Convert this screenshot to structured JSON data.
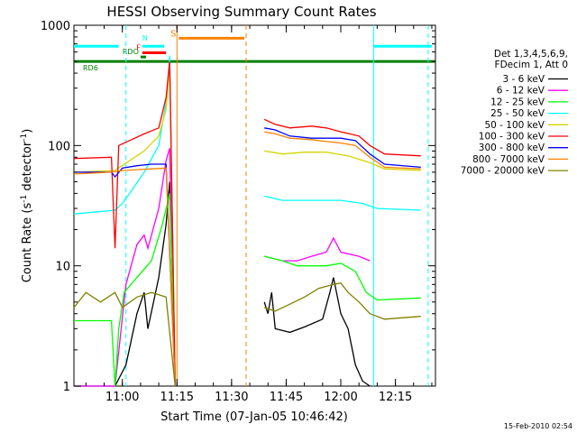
{
  "chart_data": {
    "type": "line",
    "title": "HESSI Observing Summary Count Rates",
    "xlabel": "Start Time (07-Jan-05 10:46:42)",
    "ylabel_main": "Count Rate (s",
    "ylabel_sup1": "-1",
    "ylabel_mid": " detector",
    "ylabel_sup2": "-1",
    "ylabel_end": ")",
    "footer": "15-Feb-2010 02:54",
    "y_scale": "log",
    "xlim": [
      "10:46:42",
      "12:26:00"
    ],
    "ylim": [
      1,
      1000
    ],
    "x_ticks": [
      {
        "time": "11:00",
        "label": "11:00"
      },
      {
        "time": "11:15",
        "label": "11:15"
      },
      {
        "time": "11:30",
        "label": "11:30"
      },
      {
        "time": "11:45",
        "label": "11:45"
      },
      {
        "time": "12:00",
        "label": "12:00"
      },
      {
        "time": "12:15",
        "label": "12:15"
      }
    ],
    "y_ticks": [
      {
        "value": 1,
        "label": "1"
      },
      {
        "value": 10,
        "label": "10"
      },
      {
        "value": 100,
        "label": "100"
      },
      {
        "value": 1000,
        "label": "1000"
      }
    ],
    "legend_header": [
      "Det 1,3,4,5,6,9,",
      "FDecim 1, Att 0"
    ],
    "series": [
      {
        "name": "3 - 6 keV",
        "color": "#000000",
        "points": [
          [
            "10:46:42",
            1
          ],
          [
            "10:58:00",
            1
          ],
          [
            "11:01:00",
            1.5
          ],
          [
            "11:04:00",
            4
          ],
          [
            "11:06:00",
            6
          ],
          [
            "11:07:00",
            3
          ],
          [
            "11:10:00",
            8
          ],
          [
            "11:12:00",
            22
          ],
          [
            "11:13:00",
            50
          ],
          [
            "11:14:30",
            1
          ],
          [
            "11:38:00",
            null
          ],
          [
            "11:39:00",
            5
          ],
          [
            "11:40:00",
            4
          ],
          [
            "11:41:00",
            6
          ],
          [
            "11:42:00",
            3
          ],
          [
            "11:46:00",
            2.8
          ],
          [
            "11:50:00",
            3.1
          ],
          [
            "11:55:00",
            3.6
          ],
          [
            "11:57:00",
            6
          ],
          [
            "11:58:00",
            8
          ],
          [
            "12:00:00",
            4
          ],
          [
            "12:02:00",
            3
          ],
          [
            "12:04:00",
            1.5
          ],
          [
            "12:06:00",
            1.1
          ],
          [
            "12:08:00",
            1
          ],
          [
            "12:10:00",
            null
          ]
        ]
      },
      {
        "name": "6 - 12 keV",
        "color": "#ff00ff",
        "points": [
          [
            "10:46:42",
            1
          ],
          [
            "10:58:00",
            1
          ],
          [
            "11:01:00",
            7
          ],
          [
            "11:04:00",
            15
          ],
          [
            "11:06:00",
            18
          ],
          [
            "11:07:00",
            14
          ],
          [
            "11:10:00",
            30
          ],
          [
            "11:12:00",
            75
          ],
          [
            "11:13:00",
            95
          ],
          [
            "11:14:30",
            1
          ],
          [
            "11:38:00",
            null
          ],
          [
            "11:39:00",
            12
          ],
          [
            "11:44:00",
            11
          ],
          [
            "11:48:00",
            11
          ],
          [
            "11:52:00",
            12
          ],
          [
            "11:56:00",
            13
          ],
          [
            "11:58:00",
            17
          ],
          [
            "12:00:00",
            13
          ],
          [
            "12:05:00",
            12
          ],
          [
            "12:08:00",
            11
          ],
          [
            "12:10:00",
            null
          ]
        ]
      },
      {
        "name": "12 - 25 keV",
        "color": "#00ff00",
        "points": [
          [
            "10:46:42",
            3.5
          ],
          [
            "10:57:00",
            3.5
          ],
          [
            "10:58:00",
            1
          ],
          [
            "10:59:00",
            3
          ],
          [
            "11:00:30",
            6
          ],
          [
            "11:04:00",
            8
          ],
          [
            "11:08:00",
            11
          ],
          [
            "11:11:00",
            22
          ],
          [
            "11:13:00",
            40
          ],
          [
            "11:14:30",
            1
          ],
          [
            "11:38:00",
            null
          ],
          [
            "11:39:00",
            12
          ],
          [
            "11:44:00",
            11
          ],
          [
            "11:48:00",
            10
          ],
          [
            "11:52:00",
            10
          ],
          [
            "11:56:00",
            10
          ],
          [
            "12:00:00",
            10.5
          ],
          [
            "12:04:00",
            9
          ],
          [
            "12:07:00",
            6
          ],
          [
            "12:10:00",
            5.2
          ],
          [
            "12:22:00",
            5.4
          ]
        ]
      },
      {
        "name": "25 - 50 keV",
        "color": "#00ffff",
        "points": [
          [
            "10:46:42",
            27
          ],
          [
            "10:58:00",
            29
          ],
          [
            "11:00:00",
            33
          ],
          [
            "11:02:00",
            40
          ],
          [
            "11:06:00",
            60
          ],
          [
            "11:10:00",
            100
          ],
          [
            "11:12:00",
            230
          ],
          [
            "11:13:00",
            560
          ],
          [
            "11:14:30",
            1
          ],
          [
            "11:38:00",
            null
          ],
          [
            "11:39:00",
            38
          ],
          [
            "11:44:00",
            35
          ],
          [
            "11:50:00",
            35
          ],
          [
            "11:56:00",
            35
          ],
          [
            "12:00:00",
            35
          ],
          [
            "12:06:00",
            33
          ],
          [
            "12:10:00",
            30
          ],
          [
            "12:22:00",
            29
          ]
        ]
      },
      {
        "name": "50 - 100 keV",
        "color": "#d4d400",
        "points": [
          [
            "10:46:42",
            60
          ],
          [
            "10:58:00",
            62
          ],
          [
            "11:02:00",
            75
          ],
          [
            "11:06:00",
            90
          ],
          [
            "11:10:00",
            120
          ],
          [
            "11:12:00",
            200
          ],
          [
            "11:13:00",
            450
          ],
          [
            "11:14:30",
            1
          ],
          [
            "11:38:00",
            null
          ],
          [
            "11:39:00",
            90
          ],
          [
            "11:44:00",
            85
          ],
          [
            "11:50:00",
            88
          ],
          [
            "11:56:00",
            88
          ],
          [
            "12:02:00",
            82
          ],
          [
            "12:08:00",
            72
          ],
          [
            "12:12:00",
            64
          ],
          [
            "12:22:00",
            62
          ]
        ]
      },
      {
        "name": "100 - 300 keV",
        "color": "#ff0000",
        "points": [
          [
            "10:46:42",
            78
          ],
          [
            "10:57:00",
            80
          ],
          [
            "10:58:00",
            14
          ],
          [
            "10:59:00",
            100
          ],
          [
            "11:02:00",
            110
          ],
          [
            "11:06:00",
            125
          ],
          [
            "11:10:00",
            140
          ],
          [
            "11:12:00",
            250
          ],
          [
            "11:13:00",
            500
          ],
          [
            "11:14:30",
            1
          ],
          [
            "11:38:00",
            null
          ],
          [
            "11:39:00",
            165
          ],
          [
            "11:42:00",
            150
          ],
          [
            "11:46:00",
            140
          ],
          [
            "11:52:00",
            145
          ],
          [
            "11:56:00",
            140
          ],
          [
            "12:00:00",
            130
          ],
          [
            "12:05:00",
            120
          ],
          [
            "12:08:00",
            100
          ],
          [
            "12:12:00",
            85
          ],
          [
            "12:22:00",
            82
          ]
        ]
      },
      {
        "name": "300 - 800 keV",
        "color": "#0000ff",
        "points": [
          [
            "10:46:42",
            60
          ],
          [
            "10:57:00",
            60
          ],
          [
            "10:58:00",
            55
          ],
          [
            "11:00:00",
            65
          ],
          [
            "11:04:00",
            68
          ],
          [
            "11:08:00",
            70
          ],
          [
            "11:12:00",
            70
          ],
          [
            "11:14:30",
            1
          ],
          [
            "11:38:00",
            null
          ],
          [
            "11:39:00",
            140
          ],
          [
            "11:42:00",
            135
          ],
          [
            "11:46:00",
            120
          ],
          [
            "11:52:00",
            115
          ],
          [
            "11:56:00",
            115
          ],
          [
            "12:00:00",
            115
          ],
          [
            "12:04:00",
            110
          ],
          [
            "12:08:00",
            85
          ],
          [
            "12:12:00",
            70
          ],
          [
            "12:22:00",
            66
          ]
        ]
      },
      {
        "name": "800 - 7000 keV",
        "color": "#ff8000",
        "points": [
          [
            "10:46:42",
            58
          ],
          [
            "10:57:00",
            60
          ],
          [
            "11:00:00",
            62
          ],
          [
            "11:04:00",
            63
          ],
          [
            "11:08:00",
            64
          ],
          [
            "11:12:00",
            65
          ],
          [
            "11:14:30",
            1
          ],
          [
            "11:38:00",
            null
          ],
          [
            "11:39:00",
            130
          ],
          [
            "11:42:00",
            125
          ],
          [
            "11:46:00",
            115
          ],
          [
            "11:52:00",
            112
          ],
          [
            "11:56:00",
            108
          ],
          [
            "12:00:00",
            105
          ],
          [
            "12:04:00",
            100
          ],
          [
            "12:08:00",
            80
          ],
          [
            "12:12:00",
            66
          ],
          [
            "12:22:00",
            64
          ]
        ]
      },
      {
        "name": "7000 - 20000 keV",
        "color": "#808000",
        "points": [
          [
            "10:46:42",
            4.5
          ],
          [
            "10:50:00",
            6
          ],
          [
            "10:54:00",
            5
          ],
          [
            "10:58:00",
            6
          ],
          [
            "11:00:00",
            4.5
          ],
          [
            "11:04:00",
            5.5
          ],
          [
            "11:08:00",
            6
          ],
          [
            "11:12:00",
            5.5
          ],
          [
            "11:14:30",
            1
          ],
          [
            "11:38:00",
            null
          ],
          [
            "11:39:00",
            4.5
          ],
          [
            "11:42:00",
            4.2
          ],
          [
            "11:46:00",
            4.8
          ],
          [
            "11:50:00",
            5.5
          ],
          [
            "11:54:00",
            6.5
          ],
          [
            "11:58:00",
            7
          ],
          [
            "12:00:00",
            7.2
          ],
          [
            "12:02:00",
            6
          ],
          [
            "12:05:00",
            5
          ],
          [
            "12:08:00",
            4
          ],
          [
            "12:12:00",
            3.6
          ],
          [
            "12:22:00",
            3.8
          ]
        ]
      }
    ],
    "flag_bars": [
      {
        "label": "",
        "color": "#00ffff",
        "start": "10:46:42",
        "end": "10:59:00",
        "value": 670
      },
      {
        "label": "N",
        "color": "#00ffff",
        "start": "11:05:30",
        "end": "11:11:30",
        "value": 670
      },
      {
        "label": "F",
        "color": "#ff0000",
        "start": "11:05:30",
        "end": "11:12:00",
        "value": 590
      },
      {
        "label": "S",
        "color": "#ff8000",
        "start": "11:15:30",
        "end": "11:33:30",
        "value": 780
      },
      {
        "label": "",
        "color": "#00ffff",
        "start": "12:09:00",
        "end": "12:25:00",
        "value": 670
      },
      {
        "label": "RD6",
        "color": "#008000",
        "start": "10:46:42",
        "end": "12:26:00",
        "value": 500
      },
      {
        "label": "RDO",
        "color": "#008000",
        "start": "11:05:00",
        "end": "11:06:30",
        "value": 545
      }
    ],
    "v_lines": [
      {
        "time": "11:01:00",
        "color": "#00ffff",
        "style": "dashed"
      },
      {
        "time": "11:15:00",
        "color": "#ff8000",
        "style": "solid"
      },
      {
        "time": "11:34:00",
        "color": "#ff8000",
        "style": "dashed"
      },
      {
        "time": "12:09:00",
        "color": "#00ffff",
        "style": "solid"
      },
      {
        "time": "12:24:00",
        "color": "#00ffff",
        "style": "dashed"
      }
    ]
  }
}
